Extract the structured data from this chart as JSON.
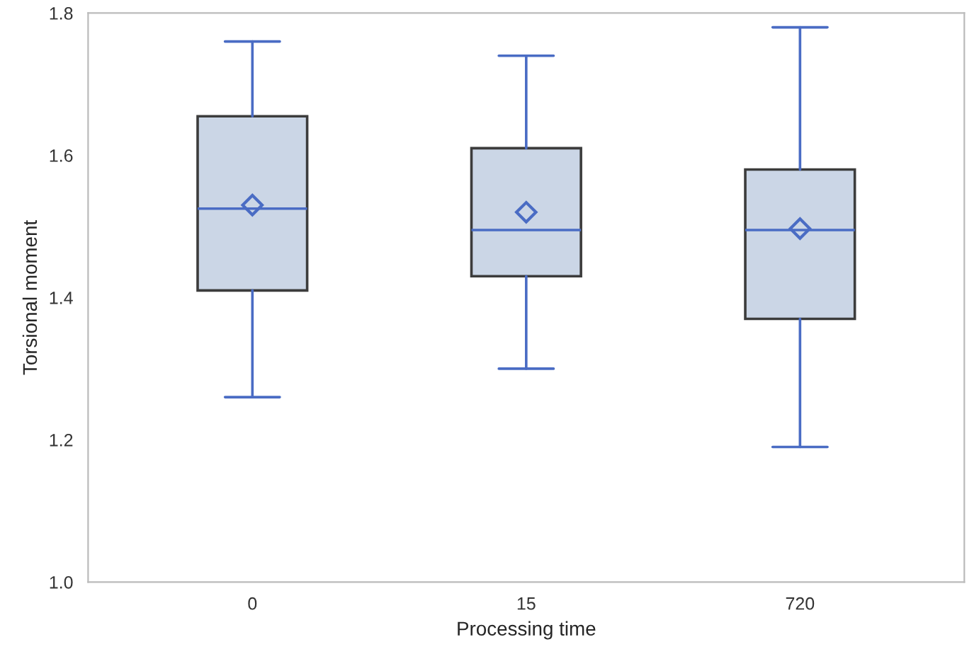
{
  "chart_data": {
    "type": "box",
    "xlabel": "Processing time",
    "ylabel": "Torsional moment",
    "categories": [
      "0",
      "15",
      "720"
    ],
    "color": "#4a6cc4",
    "marker": "diamond",
    "grid": false,
    "series": [
      {
        "color": "#cbd6e6",
        "boxes": [
          {
            "low": 1.26,
            "q1": 1.41,
            "median": 1.525,
            "q3": 1.655,
            "high": 1.76,
            "mean": 1.53
          },
          {
            "low": 1.3,
            "q1": 1.43,
            "median": 1.495,
            "q3": 1.61,
            "high": 1.74,
            "mean": 1.52
          },
          {
            "low": 1.19,
            "q1": 1.37,
            "median": 1.495,
            "q3": 1.58,
            "high": 1.78,
            "mean": 1.497
          }
        ]
      }
    ],
    "ylim": [
      1.0,
      1.8
    ],
    "yticks": [
      {
        "value": 1.0,
        "label": "1.0"
      },
      {
        "value": 1.2,
        "label": "1.2"
      },
      {
        "value": 1.4,
        "label": "1.4"
      },
      {
        "value": 1.6,
        "label": "1.6"
      },
      {
        "value": 1.8,
        "label": "1.8"
      }
    ]
  }
}
